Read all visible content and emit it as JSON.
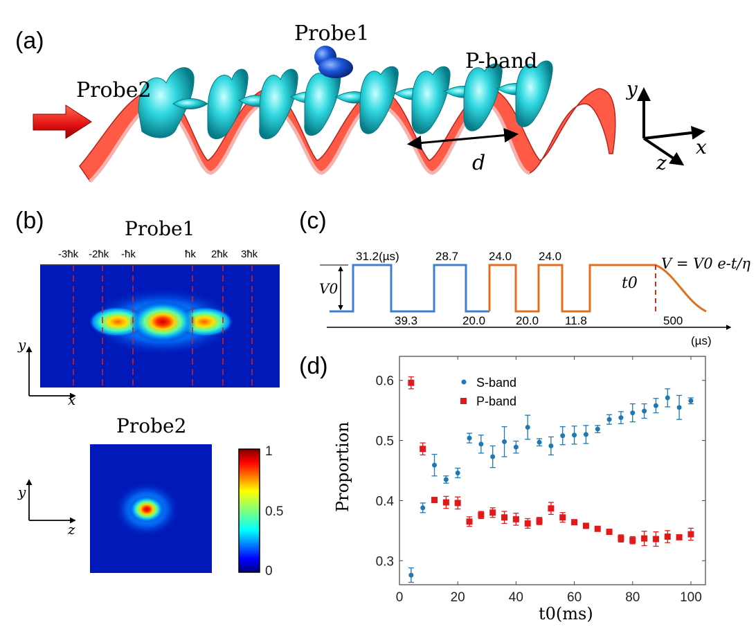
{
  "panels": {
    "a": {
      "label": "(a)",
      "probe1": "Probe1",
      "probe2": "Probe2",
      "pband": "P-band",
      "d": "d",
      "axes": {
        "y": "y",
        "x": "x",
        "z": "z"
      }
    },
    "b": {
      "label": "(b)",
      "probe1_title": "Probe1",
      "probe2_title": "Probe2",
      "momentum_labels": [
        "-3ħk",
        "-2ħk",
        "-ħk",
        "ħk",
        "2ħk",
        "3ħk"
      ],
      "axes1": {
        "y": "y",
        "x": "x"
      },
      "axes2": {
        "y": "y",
        "z": "z"
      },
      "colorbar_ticks": [
        "1",
        "0.5",
        "0"
      ]
    },
    "c": {
      "label": "(c)",
      "high_times": [
        "31.2(µs)",
        "28.7",
        "24.0",
        "24.0"
      ],
      "low_times": [
        "39.3",
        "20.0",
        "20.0",
        "11.8"
      ],
      "v0": "V0",
      "t0": "t0",
      "tail": "500",
      "time_unit": "(µs)",
      "formula": "V = V0 e-t/η",
      "colors": {
        "s_sequence": "#3f7fd0",
        "p_sequence": "#e07020"
      }
    },
    "d": {
      "label": "(d)"
    }
  },
  "chart_data": {
    "type": "scatter",
    "xlabel": "t0(ms)",
    "ylabel": "Proportion",
    "xlim": [
      0,
      105
    ],
    "ylim": [
      0.26,
      0.64
    ],
    "xticks": [
      0,
      20,
      40,
      60,
      80,
      100
    ],
    "yticks": [
      0.3,
      0.4,
      0.5,
      0.6
    ],
    "legend": "top-left",
    "series": [
      {
        "name": "S-band",
        "color": "#1f77b4",
        "marker": "circle",
        "x": [
          4,
          8,
          12,
          16,
          20,
          24,
          28,
          32,
          36,
          40,
          44,
          48,
          52,
          56,
          60,
          64,
          68,
          72,
          76,
          80,
          84,
          88,
          92,
          96,
          100
        ],
        "y": [
          0.276,
          0.388,
          0.459,
          0.435,
          0.446,
          0.504,
          0.494,
          0.473,
          0.498,
          0.489,
          0.522,
          0.497,
          0.491,
          0.508,
          0.509,
          0.51,
          0.519,
          0.535,
          0.538,
          0.546,
          0.549,
          0.558,
          0.571,
          0.555,
          0.566
        ],
        "err": [
          0.012,
          0.008,
          0.018,
          0.006,
          0.008,
          0.008,
          0.015,
          0.018,
          0.025,
          0.01,
          0.02,
          0.006,
          0.015,
          0.015,
          0.015,
          0.015,
          0.006,
          0.008,
          0.01,
          0.015,
          0.012,
          0.012,
          0.015,
          0.02,
          0.005
        ]
      },
      {
        "name": "P-band",
        "color": "#e0191b",
        "marker": "square",
        "x": [
          4,
          8,
          12,
          16,
          20,
          24,
          28,
          32,
          36,
          40,
          44,
          48,
          52,
          56,
          60,
          64,
          68,
          72,
          76,
          80,
          84,
          88,
          92,
          96,
          100
        ],
        "y": [
          0.596,
          0.486,
          0.401,
          0.397,
          0.396,
          0.365,
          0.376,
          0.38,
          0.372,
          0.369,
          0.362,
          0.366,
          0.387,
          0.372,
          0.364,
          0.358,
          0.353,
          0.348,
          0.337,
          0.334,
          0.337,
          0.336,
          0.34,
          0.339,
          0.344
        ],
        "err": [
          0.01,
          0.01,
          0.004,
          0.01,
          0.01,
          0.008,
          0.006,
          0.008,
          0.01,
          0.01,
          0.008,
          0.006,
          0.01,
          0.008,
          0.004,
          0.004,
          0.004,
          0.004,
          0.006,
          0.006,
          0.012,
          0.012,
          0.01,
          0.004,
          0.01
        ]
      }
    ]
  }
}
